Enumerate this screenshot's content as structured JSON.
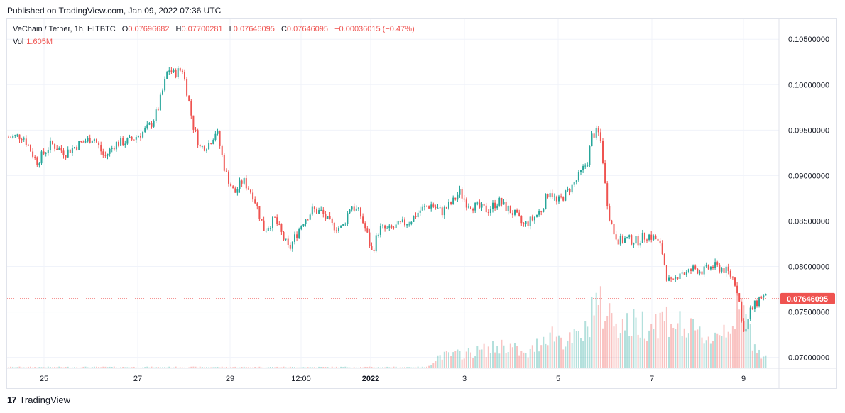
{
  "header": {
    "published": "Published on TradingView.com, Jan 09, 2022 07:36 UTC",
    "symbol": "VeChain / Tether, 1h, HITBTC",
    "o_label": "O",
    "o_value": "0.07696682",
    "h_label": "H",
    "h_value": "0.07700281",
    "l_label": "L",
    "l_value": "0.07646095",
    "c_label": "C",
    "c_value": "0.07646095",
    "change": "−0.00036015 (−0.47%)",
    "vol_label": "Vol",
    "vol_value": "1.605M"
  },
  "footer": {
    "brand": "TradingView",
    "logo_text": "17"
  },
  "colors": {
    "up": "#26a69a",
    "down": "#ef5350",
    "grid": "#f0f3fa",
    "axis_text": "#131722"
  },
  "chart_data": {
    "type": "candlestick",
    "title": "VeChain / Tether, 1h, HITBTC",
    "y_ticks": [
      "0.10500000",
      "0.10000000",
      "0.09500000",
      "0.09000000",
      "0.08500000",
      "0.08000000",
      "0.07500000",
      "0.07000000"
    ],
    "y_tick_values": [
      0.105,
      0.1,
      0.095,
      0.09,
      0.085,
      0.08,
      0.075,
      0.07
    ],
    "ylim": [
      0.0688,
      0.1072
    ],
    "x_ticks": [
      "25",
      "27",
      "29",
      "12:00",
      "2022",
      "3",
      "5",
      "7",
      "9"
    ],
    "last_price": "0.07646095",
    "last_price_value": 0.07646095,
    "grid": true,
    "close_path": [
      [
        0,
        0.0942
      ],
      [
        20,
        0.0944
      ],
      [
        40,
        0.0915
      ],
      [
        60,
        0.0935
      ],
      [
        80,
        0.0925
      ],
      [
        100,
        0.0935
      ],
      [
        120,
        0.0942
      ],
      [
        135,
        0.092
      ],
      [
        150,
        0.0935
      ],
      [
        170,
        0.0938
      ],
      [
        190,
        0.0948
      ],
      [
        200,
        0.0955
      ],
      [
        210,
        0.0972
      ],
      [
        218,
        0.0996
      ],
      [
        225,
        0.1018
      ],
      [
        232,
        0.1012
      ],
      [
        245,
        0.1017
      ],
      [
        252,
        0.099
      ],
      [
        260,
        0.0955
      ],
      [
        270,
        0.093
      ],
      [
        282,
        0.0935
      ],
      [
        293,
        0.095
      ],
      [
        305,
        0.0905
      ],
      [
        318,
        0.088
      ],
      [
        330,
        0.0895
      ],
      [
        345,
        0.0878
      ],
      [
        360,
        0.084
      ],
      [
        375,
        0.0852
      ],
      [
        385,
        0.0835
      ],
      [
        395,
        0.0818
      ],
      [
        405,
        0.0835
      ],
      [
        415,
        0.085
      ],
      [
        428,
        0.0862
      ],
      [
        440,
        0.086
      ],
      [
        455,
        0.0845
      ],
      [
        470,
        0.0842
      ],
      [
        482,
        0.0868
      ],
      [
        495,
        0.0858
      ],
      [
        505,
        0.0835
      ],
      [
        512,
        0.0815
      ],
      [
        522,
        0.0842
      ],
      [
        535,
        0.084
      ],
      [
        550,
        0.0845
      ],
      [
        565,
        0.085
      ],
      [
        580,
        0.0862
      ],
      [
        595,
        0.0868
      ],
      [
        610,
        0.086
      ],
      [
        625,
        0.087
      ],
      [
        635,
        0.0882
      ],
      [
        645,
        0.087
      ],
      [
        660,
        0.0865
      ],
      [
        675,
        0.0862
      ],
      [
        690,
        0.0872
      ],
      [
        700,
        0.0865
      ],
      [
        712,
        0.0858
      ],
      [
        725,
        0.0845
      ],
      [
        738,
        0.0852
      ],
      [
        750,
        0.0862
      ],
      [
        762,
        0.0885
      ],
      [
        772,
        0.087
      ],
      [
        785,
        0.088
      ],
      [
        800,
        0.0895
      ],
      [
        815,
        0.0915
      ],
      [
        822,
        0.0945
      ],
      [
        830,
        0.0948
      ],
      [
        835,
        0.0935
      ],
      [
        840,
        0.089
      ],
      [
        845,
        0.086
      ],
      [
        852,
        0.0838
      ],
      [
        860,
        0.0828
      ],
      [
        870,
        0.083
      ],
      [
        885,
        0.0828
      ],
      [
        900,
        0.0835
      ],
      [
        912,
        0.083
      ],
      [
        920,
        0.0818
      ],
      [
        928,
        0.0785
      ],
      [
        935,
        0.078
      ],
      [
        945,
        0.0795
      ],
      [
        955,
        0.0792
      ],
      [
        965,
        0.0798
      ],
      [
        978,
        0.0795
      ],
      [
        992,
        0.08
      ],
      [
        1005,
        0.0798
      ],
      [
        1015,
        0.0792
      ],
      [
        1022,
        0.0785
      ],
      [
        1028,
        0.077
      ],
      [
        1032,
        0.074
      ],
      [
        1038,
        0.0728
      ],
      [
        1045,
        0.0752
      ],
      [
        1052,
        0.0758
      ],
      [
        1060,
        0.0768
      ],
      [
        1068,
        0.07646
      ]
    ],
    "volume_path": [
      [
        0,
        0.01
      ],
      [
        590,
        0.01
      ],
      [
        605,
        0.1
      ],
      [
        640,
        0.12
      ],
      [
        680,
        0.16
      ],
      [
        700,
        0.2
      ],
      [
        730,
        0.1
      ],
      [
        760,
        0.3
      ],
      [
        790,
        0.22
      ],
      [
        815,
        0.3
      ],
      [
        822,
        0.55
      ],
      [
        832,
        0.5
      ],
      [
        845,
        0.45
      ],
      [
        870,
        0.35
      ],
      [
        900,
        0.38
      ],
      [
        930,
        0.42
      ],
      [
        960,
        0.3
      ],
      [
        990,
        0.25
      ],
      [
        1020,
        0.4
      ],
      [
        1035,
        0.48
      ],
      [
        1050,
        0.2
      ],
      [
        1068,
        0.08
      ]
    ]
  }
}
